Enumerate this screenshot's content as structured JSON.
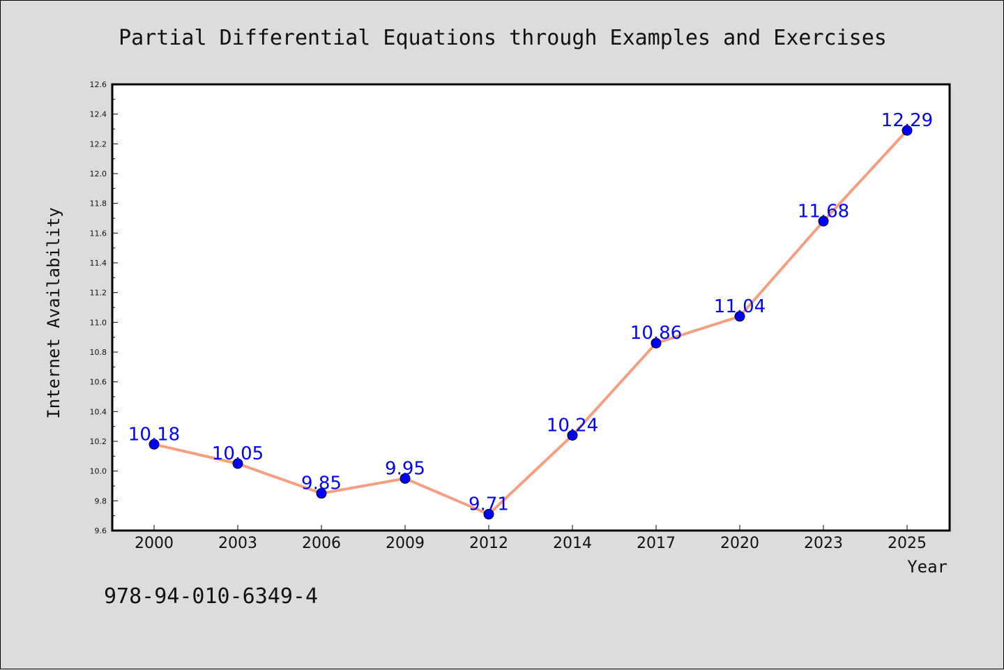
{
  "chart_data": {
    "type": "line",
    "title": "Partial Differential Equations through Examples and Exercises",
    "xlabel": "Year",
    "ylabel": "Internet Availability",
    "categories": [
      "2000",
      "2003",
      "2006",
      "2009",
      "2012",
      "2014",
      "2017",
      "2020",
      "2023",
      "2025"
    ],
    "series": [
      {
        "values": [
          10.18,
          10.05,
          9.85,
          9.95,
          9.71,
          10.24,
          10.86,
          11.04,
          11.68,
          12.29
        ],
        "line_color": "#f4a080",
        "marker_color": "#0000ff"
      }
    ],
    "ylim": [
      9.6,
      12.6
    ],
    "yticks": [
      "9.6",
      "9.8",
      "10.0",
      "10.2",
      "10.4",
      "10.6",
      "10.8",
      "11.0",
      "11.2",
      "11.4",
      "11.6",
      "11.8",
      "12.0",
      "12.2",
      "12.4",
      "12.6"
    ],
    "grid": false,
    "data_labels": true
  },
  "footer_text": "978-94-010-6349-4",
  "colors": {
    "background": "#dcdcdc",
    "plot_background": "#ffffff",
    "label_color": "#0000ff"
  }
}
